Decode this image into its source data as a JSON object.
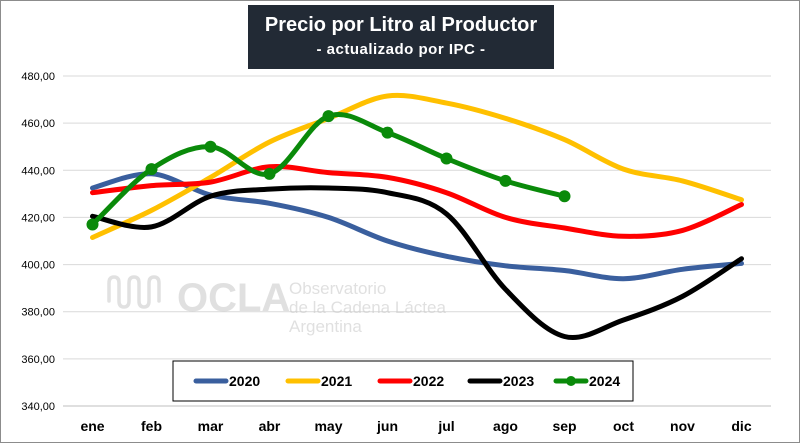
{
  "title": "Precio por Litro al Productor",
  "subtitle": "- actualizado por IPC -",
  "watermark": {
    "name": "OCLA",
    "line1": "Observatorio",
    "line2": "de la Cadena Láctea",
    "line3": "Argentina"
  },
  "chart_data": {
    "type": "line",
    "categories": [
      "ene",
      "feb",
      "mar",
      "abr",
      "may",
      "jun",
      "jul",
      "ago",
      "sep",
      "oct",
      "nov",
      "dic"
    ],
    "ylim": [
      340,
      480
    ],
    "yticks": [
      "340,00",
      "360,00",
      "380,00",
      "400,00",
      "420,00",
      "440,00",
      "460,00",
      "480,00"
    ],
    "grid": true,
    "legend_position": "bottom-center",
    "series": [
      {
        "name": "2020",
        "color": "#3a5f9e",
        "markers": false,
        "values": [
          432.5,
          438.5,
          429.5,
          426,
          420,
          410,
          403.5,
          399.5,
          397.5,
          394,
          398,
          400.5
        ]
      },
      {
        "name": "2021",
        "color": "#ffc000",
        "markers": false,
        "values": [
          411.5,
          423,
          437,
          452,
          462,
          471.5,
          468.5,
          462,
          453,
          440.5,
          435.5,
          427.5
        ]
      },
      {
        "name": "2022",
        "color": "#ff0000",
        "markers": false,
        "values": [
          430.5,
          433.5,
          435,
          441.5,
          439,
          437,
          430.5,
          420,
          415.5,
          412,
          414.5,
          425.5
        ]
      },
      {
        "name": "2023",
        "color": "#000000",
        "markers": false,
        "values": [
          420.5,
          416,
          429,
          432,
          432.5,
          430.5,
          421.5,
          389.5,
          369.5,
          376.5,
          386.5,
          402.5
        ]
      },
      {
        "name": "2024",
        "color": "#0a8a0a",
        "markers": true,
        "values": [
          417,
          440.5,
          450,
          438.5,
          463,
          456,
          445,
          435.5,
          429,
          null,
          null,
          null
        ]
      }
    ]
  }
}
